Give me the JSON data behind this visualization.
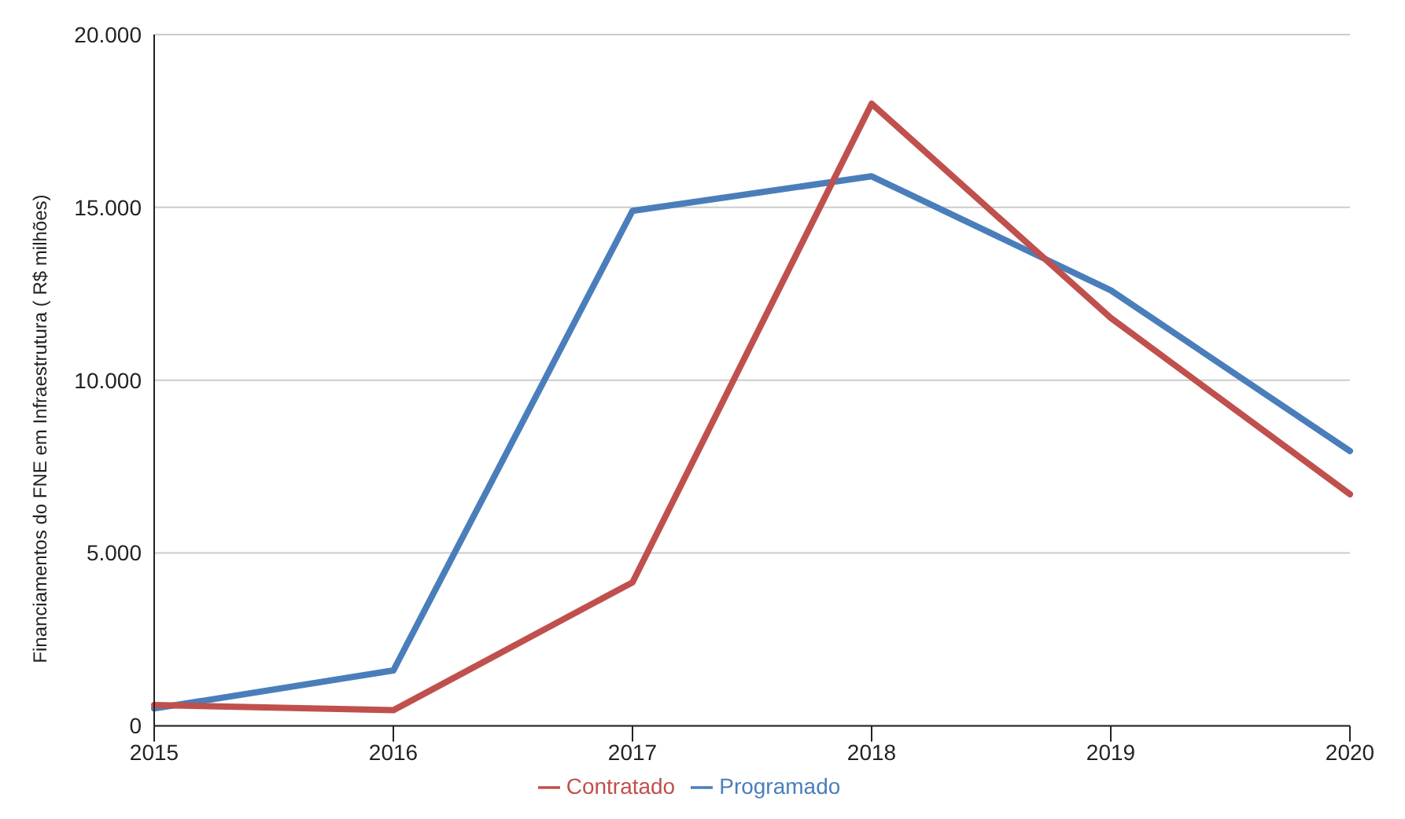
{
  "chart_data": {
    "type": "line",
    "ylabel": "Financiamentos do FNE em Infraestrutura ( R$ milhões)",
    "categories": [
      "2015",
      "2016",
      "2017",
      "2018",
      "2019",
      "2020"
    ],
    "series": [
      {
        "name": "Programado",
        "color": "#4a7ebb",
        "values": [
          500,
          1600,
          14900,
          15900,
          12600,
          7950
        ]
      },
      {
        "name": "Contratado",
        "color": "#c0504d",
        "values": [
          600,
          450,
          4150,
          18000,
          11800,
          6700
        ]
      }
    ],
    "ylim": [
      0,
      20000
    ],
    "yticks": [
      {
        "value": 0,
        "label": "0"
      },
      {
        "value": 5000,
        "label": "5.000"
      },
      {
        "value": 10000,
        "label": "10.000"
      },
      {
        "value": 15000,
        "label": "15.000"
      },
      {
        "value": 20000,
        "label": "20.000"
      }
    ],
    "grid": "y",
    "legend": "bottom",
    "marker": "none",
    "line_style": "solid"
  }
}
